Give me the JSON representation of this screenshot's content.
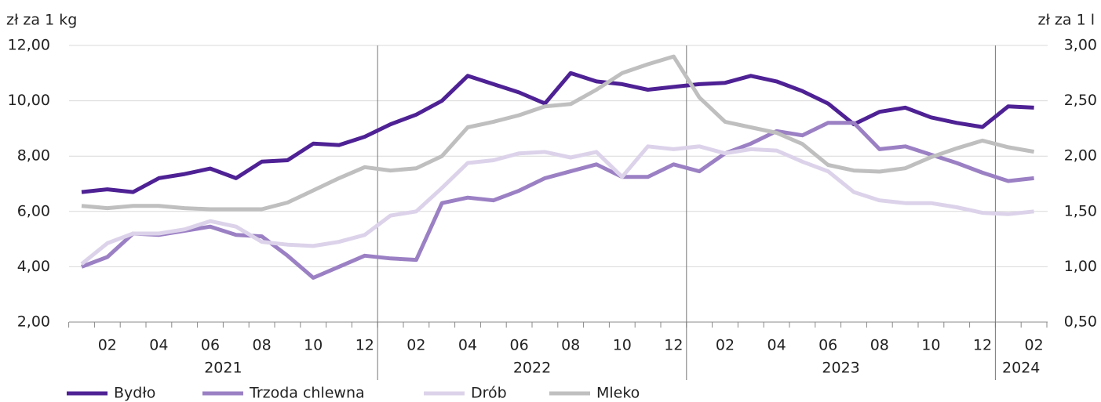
{
  "chart_data": {
    "type": "line",
    "y_label": "zł za 1 kg",
    "y2_label": "zł za 1 l",
    "categories": [
      null,
      "02",
      null,
      "04",
      null,
      "06",
      null,
      "08",
      null,
      "10",
      null,
      "12",
      null,
      "02",
      null,
      "04",
      null,
      "06",
      null,
      "08",
      null,
      "10",
      null,
      "12",
      null,
      "02",
      null,
      "04",
      null,
      "06",
      null,
      "08",
      null,
      "10",
      null,
      "12",
      null,
      "02"
    ],
    "years": [
      "2021",
      "2022",
      "2023",
      "2024"
    ],
    "ylim": [
      2,
      12
    ],
    "yticks": [
      {
        "value": 2,
        "label": "2,00"
      },
      {
        "value": 4,
        "label": "4,00"
      },
      {
        "value": 6,
        "label": "6,00"
      },
      {
        "value": 8,
        "label": "8,00"
      },
      {
        "value": 10,
        "label": "10,00"
      },
      {
        "value": 12,
        "label": "12,00"
      }
    ],
    "y2lim": [
      0.5,
      3
    ],
    "y2ticks": [
      {
        "value": 0.5,
        "label": "0,50"
      },
      {
        "value": 1,
        "label": "1,00"
      },
      {
        "value": 1.5,
        "label": "1,50"
      },
      {
        "value": 2,
        "label": "2,00"
      },
      {
        "value": 2.5,
        "label": "2,50"
      },
      {
        "value": 3,
        "label": "3,00"
      }
    ],
    "grid": true,
    "series": [
      {
        "name": "Bydło",
        "color": "#4e2194",
        "values": [
          6.7,
          6.8,
          6.7,
          7.2,
          7.35,
          7.55,
          7.2,
          7.8,
          7.85,
          8.45,
          8.4,
          8.7,
          9.15,
          9.5,
          10.0,
          10.9,
          10.6,
          10.3,
          9.9,
          11.0,
          10.7,
          10.6,
          10.4,
          10.5,
          10.6,
          10.65,
          10.9,
          10.7,
          10.35,
          9.9,
          9.15,
          9.6,
          9.75,
          9.4,
          9.2,
          9.05,
          9.8,
          9.75
        ]
      },
      {
        "name": "Trzoda chlewna",
        "color": "#9b80c4",
        "values": [
          4.0,
          4.35,
          5.2,
          5.15,
          5.3,
          5.45,
          5.15,
          5.1,
          4.4,
          3.6,
          4.0,
          4.4,
          4.3,
          4.25,
          6.3,
          6.5,
          6.4,
          6.75,
          7.2,
          7.45,
          7.7,
          7.25,
          7.25,
          7.7,
          7.45,
          8.1,
          8.45,
          8.9,
          8.75,
          9.2,
          9.2,
          8.25,
          8.35,
          8.05,
          7.75,
          7.4,
          7.1,
          7.2
        ]
      },
      {
        "name": "Drób",
        "color": "#dcd3ea",
        "values": [
          4.1,
          4.85,
          5.2,
          5.2,
          5.35,
          5.65,
          5.45,
          4.9,
          4.8,
          4.75,
          4.9,
          5.15,
          5.85,
          6.0,
          6.85,
          7.75,
          7.85,
          8.1,
          8.15,
          7.95,
          8.15,
          7.25,
          8.35,
          8.25,
          8.35,
          8.1,
          8.25,
          8.2,
          7.8,
          7.45,
          6.7,
          6.4,
          6.3,
          6.3,
          6.15,
          5.95,
          5.9,
          6.0
        ]
      },
      {
        "name": "Mleko",
        "color": "#bfbfbf",
        "axis": "y2",
        "values": [
          1.55,
          1.53,
          1.55,
          1.55,
          1.53,
          1.52,
          1.52,
          1.52,
          1.58,
          1.69,
          1.8,
          1.9,
          1.87,
          1.89,
          2.0,
          2.26,
          2.31,
          2.37,
          2.45,
          2.47,
          2.6,
          2.75,
          2.83,
          2.9,
          2.53,
          2.31,
          2.26,
          2.21,
          2.11,
          1.92,
          1.87,
          1.86,
          1.89,
          1.99,
          2.07,
          2.14,
          2.08,
          2.04
        ]
      }
    ]
  }
}
